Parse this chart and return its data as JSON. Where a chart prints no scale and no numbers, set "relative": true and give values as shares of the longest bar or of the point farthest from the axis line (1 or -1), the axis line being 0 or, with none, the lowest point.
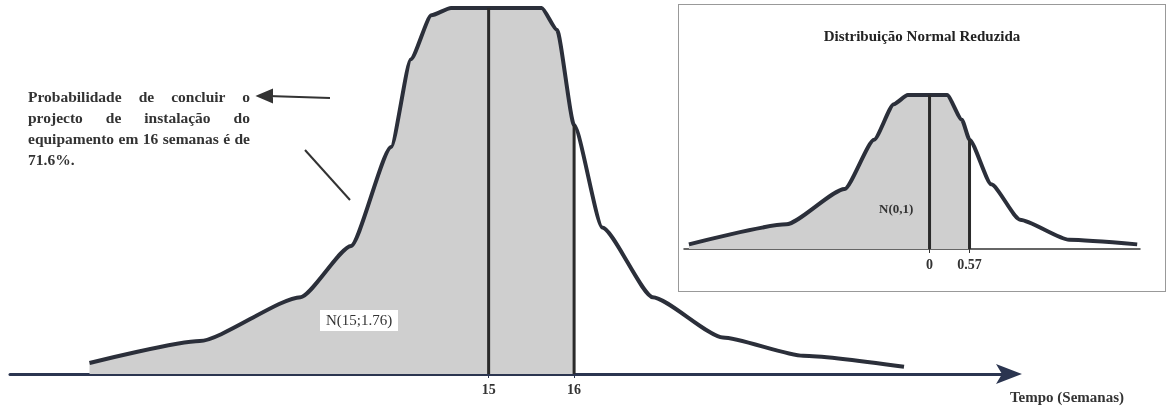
{
  "chart_data": [
    {
      "type": "area",
      "relative": true,
      "xlabel": "Tempo (Semanas)",
      "xlim": [
        9.4,
        21.1
      ],
      "xticks": [
        15,
        16
      ],
      "annotations": [
        "Probabilidade de concluir o projecto de instalação do equipamento em 16 semanas é de 71.6%.",
        "N(15;1.76)"
      ],
      "ref_lines": [
        {
          "axis": "x",
          "value": 15,
          "color": "#2a2a2a"
        },
        {
          "axis": "x",
          "value": 16,
          "color": "#2a2a2a"
        }
      ],
      "series": [
        {
          "type": "area",
          "color": "#cfcfcf",
          "x": [
            10.33,
            11.62,
            12.8,
            13.39,
            13.86,
            14.09,
            14.33,
            14.56,
            15,
            15.62,
            15.8,
            16
          ],
          "values": [
            0.03,
            0.09,
            0.21,
            0.35,
            0.62,
            0.86,
            0.98,
            1,
            1,
            1,
            0.94,
            0.68
          ]
        },
        {
          "type": "line",
          "color": "#2b2f3a",
          "x": [
            10.33,
            11.62,
            12.8,
            13.39,
            13.86,
            14.09,
            14.33,
            14.56,
            15,
            15.62,
            15.8,
            16,
            16.33,
            16.92,
            17.74,
            18.68,
            19.86
          ],
          "values": [
            0.03,
            0.09,
            0.21,
            0.35,
            0.62,
            0.86,
            0.98,
            1,
            1,
            1,
            0.94,
            0.68,
            0.4,
            0.21,
            0.1,
            0.05,
            0.02
          ]
        }
      ]
    },
    {
      "type": "area",
      "relative": true,
      "title": "Distribuição Normal Reduzida",
      "xlim": [
        -3.5,
        3
      ],
      "xticks": [
        0,
        0.57
      ],
      "annotations": [
        "N(0,1)"
      ],
      "ref_lines": [
        {
          "axis": "x",
          "value": 0,
          "color": "#2a2a2a"
        },
        {
          "axis": "x",
          "value": 0.57,
          "color": "#2a2a2a"
        }
      ],
      "series": [
        {
          "type": "area",
          "color": "#cfcfcf",
          "x": [
            -3.43,
            -2.04,
            -1.21,
            -0.79,
            -0.51,
            -0.31,
            0,
            0.25,
            0.46,
            0.57
          ],
          "values": [
            0.03,
            0.16,
            0.39,
            0.71,
            0.94,
            1,
            1,
            1,
            0.84,
            0.71
          ]
        },
        {
          "type": "line",
          "color": "#2b2f3a",
          "x": [
            -3.43,
            -2.04,
            -1.21,
            -0.79,
            -0.51,
            -0.31,
            0,
            0.25,
            0.46,
            0.57,
            0.88,
            1.29,
            1.99,
            2.96
          ],
          "values": [
            0.03,
            0.16,
            0.39,
            0.71,
            0.94,
            1,
            1,
            1,
            0.84,
            0.71,
            0.42,
            0.19,
            0.06,
            0.03
          ]
        }
      ]
    }
  ]
}
